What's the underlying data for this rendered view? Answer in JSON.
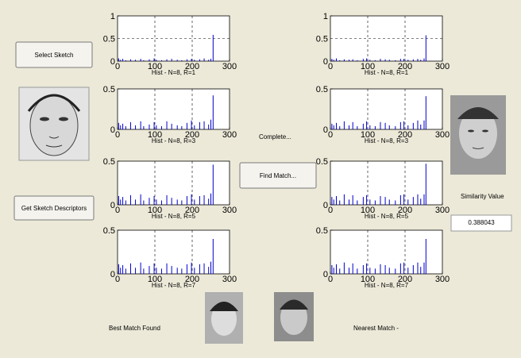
{
  "buttons": {
    "select_sketch": "Select Sketch",
    "get_descriptors": "Get Sketch Descriptors",
    "find_match": "Find Match..."
  },
  "status": "Complete...",
  "labels": {
    "similarity": "Similarity Value",
    "similarity_value": "0.388043",
    "best_match": "Best Match Found",
    "nearest_match": "Nearest Match -"
  },
  "chart_data": [
    {
      "type": "stem",
      "xlabel": "Hist - N=8, R=1",
      "xlim": [
        0,
        300
      ],
      "ylim": [
        0,
        1
      ],
      "xticks": [
        0,
        100,
        200,
        300
      ],
      "yticks": [
        0,
        0.5,
        1
      ],
      "grid": true,
      "color": "#0000cc",
      "x": [
        3,
        8,
        14,
        22,
        35,
        48,
        62,
        70,
        85,
        98,
        104,
        118,
        132,
        145,
        160,
        172,
        186,
        198,
        206,
        220,
        232,
        244,
        250,
        256
      ],
      "values": [
        0.06,
        0.03,
        0.05,
        0.02,
        0.04,
        0.03,
        0.05,
        0.02,
        0.04,
        0.06,
        0.03,
        0.02,
        0.04,
        0.05,
        0.03,
        0.02,
        0.04,
        0.05,
        0.03,
        0.04,
        0.06,
        0.03,
        0.05,
        0.58
      ]
    },
    {
      "type": "stem",
      "xlabel": "Hist - N=8, R=3",
      "xlim": [
        0,
        300
      ],
      "ylim": [
        0,
        0.5
      ],
      "xticks": [
        0,
        100,
        200,
        300
      ],
      "yticks": [
        0,
        0.5
      ],
      "grid": true,
      "color": "#0000cc",
      "x": [
        3,
        8,
        14,
        22,
        35,
        48,
        62,
        70,
        85,
        98,
        104,
        118,
        132,
        145,
        160,
        172,
        186,
        198,
        206,
        220,
        232,
        244,
        250,
        256
      ],
      "values": [
        0.08,
        0.05,
        0.07,
        0.04,
        0.09,
        0.05,
        0.1,
        0.04,
        0.06,
        0.09,
        0.05,
        0.04,
        0.1,
        0.07,
        0.05,
        0.04,
        0.08,
        0.11,
        0.05,
        0.09,
        0.1,
        0.06,
        0.12,
        0.42
      ]
    },
    {
      "type": "stem",
      "xlabel": "Hist - N=8, R=5",
      "xlim": [
        0,
        300
      ],
      "ylim": [
        0,
        0.5
      ],
      "xticks": [
        0,
        100,
        200,
        300
      ],
      "yticks": [
        0,
        0.5
      ],
      "grid": true,
      "color": "#0000cc",
      "x": [
        3,
        8,
        14,
        22,
        35,
        48,
        62,
        70,
        85,
        98,
        104,
        118,
        132,
        145,
        160,
        172,
        186,
        198,
        206,
        220,
        232,
        244,
        250,
        256
      ],
      "values": [
        0.1,
        0.06,
        0.09,
        0.05,
        0.11,
        0.06,
        0.12,
        0.05,
        0.08,
        0.1,
        0.06,
        0.05,
        0.11,
        0.08,
        0.06,
        0.05,
        0.1,
        0.12,
        0.06,
        0.1,
        0.11,
        0.07,
        0.13,
        0.46
      ]
    },
    {
      "type": "stem",
      "xlabel": "Hist - N=8, R=7",
      "xlim": [
        0,
        300
      ],
      "ylim": [
        0,
        0.5
      ],
      "xticks": [
        0,
        100,
        200,
        300
      ],
      "yticks": [
        0,
        0.5
      ],
      "grid": true,
      "color": "#0000cc",
      "x": [
        3,
        8,
        14,
        22,
        35,
        48,
        62,
        70,
        85,
        98,
        104,
        118,
        132,
        145,
        160,
        172,
        186,
        198,
        206,
        220,
        232,
        244,
        250,
        256
      ],
      "values": [
        0.11,
        0.07,
        0.1,
        0.06,
        0.12,
        0.07,
        0.13,
        0.06,
        0.09,
        0.12,
        0.07,
        0.06,
        0.12,
        0.09,
        0.07,
        0.06,
        0.11,
        0.13,
        0.07,
        0.11,
        0.12,
        0.08,
        0.14,
        0.4
      ]
    },
    {
      "type": "stem",
      "xlabel": "Hist - N=8, R=1",
      "xlim": [
        0,
        300
      ],
      "ylim": [
        0,
        1
      ],
      "xticks": [
        0,
        100,
        200,
        300
      ],
      "yticks": [
        0,
        0.5,
        1
      ],
      "grid": true,
      "color": "#0000cc",
      "x": [
        4,
        9,
        16,
        25,
        37,
        50,
        60,
        72,
        88,
        97,
        106,
        120,
        134,
        147,
        158,
        174,
        188,
        197,
        208,
        222,
        234,
        242,
        251,
        256
      ],
      "values": [
        0.05,
        0.03,
        0.06,
        0.02,
        0.04,
        0.03,
        0.04,
        0.02,
        0.05,
        0.06,
        0.03,
        0.02,
        0.05,
        0.04,
        0.03,
        0.02,
        0.05,
        0.05,
        0.03,
        0.04,
        0.05,
        0.03,
        0.06,
        0.57
      ]
    },
    {
      "type": "stem",
      "xlabel": "Hist - N=8, R=3",
      "xlim": [
        0,
        300
      ],
      "ylim": [
        0,
        0.5
      ],
      "xticks": [
        0,
        100,
        200,
        300
      ],
      "yticks": [
        0,
        0.5
      ],
      "grid": true,
      "color": "#0000cc",
      "x": [
        4,
        9,
        16,
        25,
        37,
        50,
        60,
        72,
        88,
        97,
        106,
        120,
        134,
        147,
        158,
        174,
        188,
        197,
        208,
        222,
        234,
        242,
        251,
        256
      ],
      "values": [
        0.07,
        0.05,
        0.08,
        0.04,
        0.1,
        0.05,
        0.09,
        0.04,
        0.07,
        0.1,
        0.05,
        0.04,
        0.09,
        0.08,
        0.05,
        0.04,
        0.09,
        0.1,
        0.05,
        0.08,
        0.11,
        0.06,
        0.11,
        0.41
      ]
    },
    {
      "type": "stem",
      "xlabel": "Hist - N=8, R=5",
      "xlim": [
        0,
        300
      ],
      "ylim": [
        0,
        0.5
      ],
      "xticks": [
        0,
        100,
        200,
        300
      ],
      "yticks": [
        0,
        0.5
      ],
      "grid": true,
      "color": "#0000cc",
      "x": [
        4,
        9,
        16,
        25,
        37,
        50,
        60,
        72,
        88,
        97,
        106,
        120,
        134,
        147,
        158,
        174,
        188,
        197,
        208,
        222,
        234,
        242,
        251,
        256
      ],
      "values": [
        0.09,
        0.06,
        0.1,
        0.05,
        0.12,
        0.06,
        0.11,
        0.05,
        0.09,
        0.11,
        0.06,
        0.05,
        0.1,
        0.09,
        0.06,
        0.05,
        0.11,
        0.12,
        0.06,
        0.09,
        0.12,
        0.07,
        0.12,
        0.47
      ]
    },
    {
      "type": "stem",
      "xlabel": "Hist - N=8, R=7",
      "xlim": [
        0,
        300
      ],
      "ylim": [
        0,
        0.5
      ],
      "xticks": [
        0,
        100,
        200,
        300
      ],
      "yticks": [
        0,
        0.5
      ],
      "grid": true,
      "color": "#0000cc",
      "x": [
        4,
        9,
        16,
        25,
        37,
        50,
        60,
        72,
        88,
        97,
        106,
        120,
        134,
        147,
        158,
        174,
        188,
        197,
        208,
        222,
        234,
        242,
        251,
        256
      ],
      "values": [
        0.1,
        0.07,
        0.11,
        0.06,
        0.13,
        0.07,
        0.12,
        0.06,
        0.1,
        0.12,
        0.07,
        0.06,
        0.11,
        0.1,
        0.07,
        0.06,
        0.12,
        0.13,
        0.07,
        0.1,
        0.13,
        0.08,
        0.13,
        0.4
      ]
    }
  ]
}
